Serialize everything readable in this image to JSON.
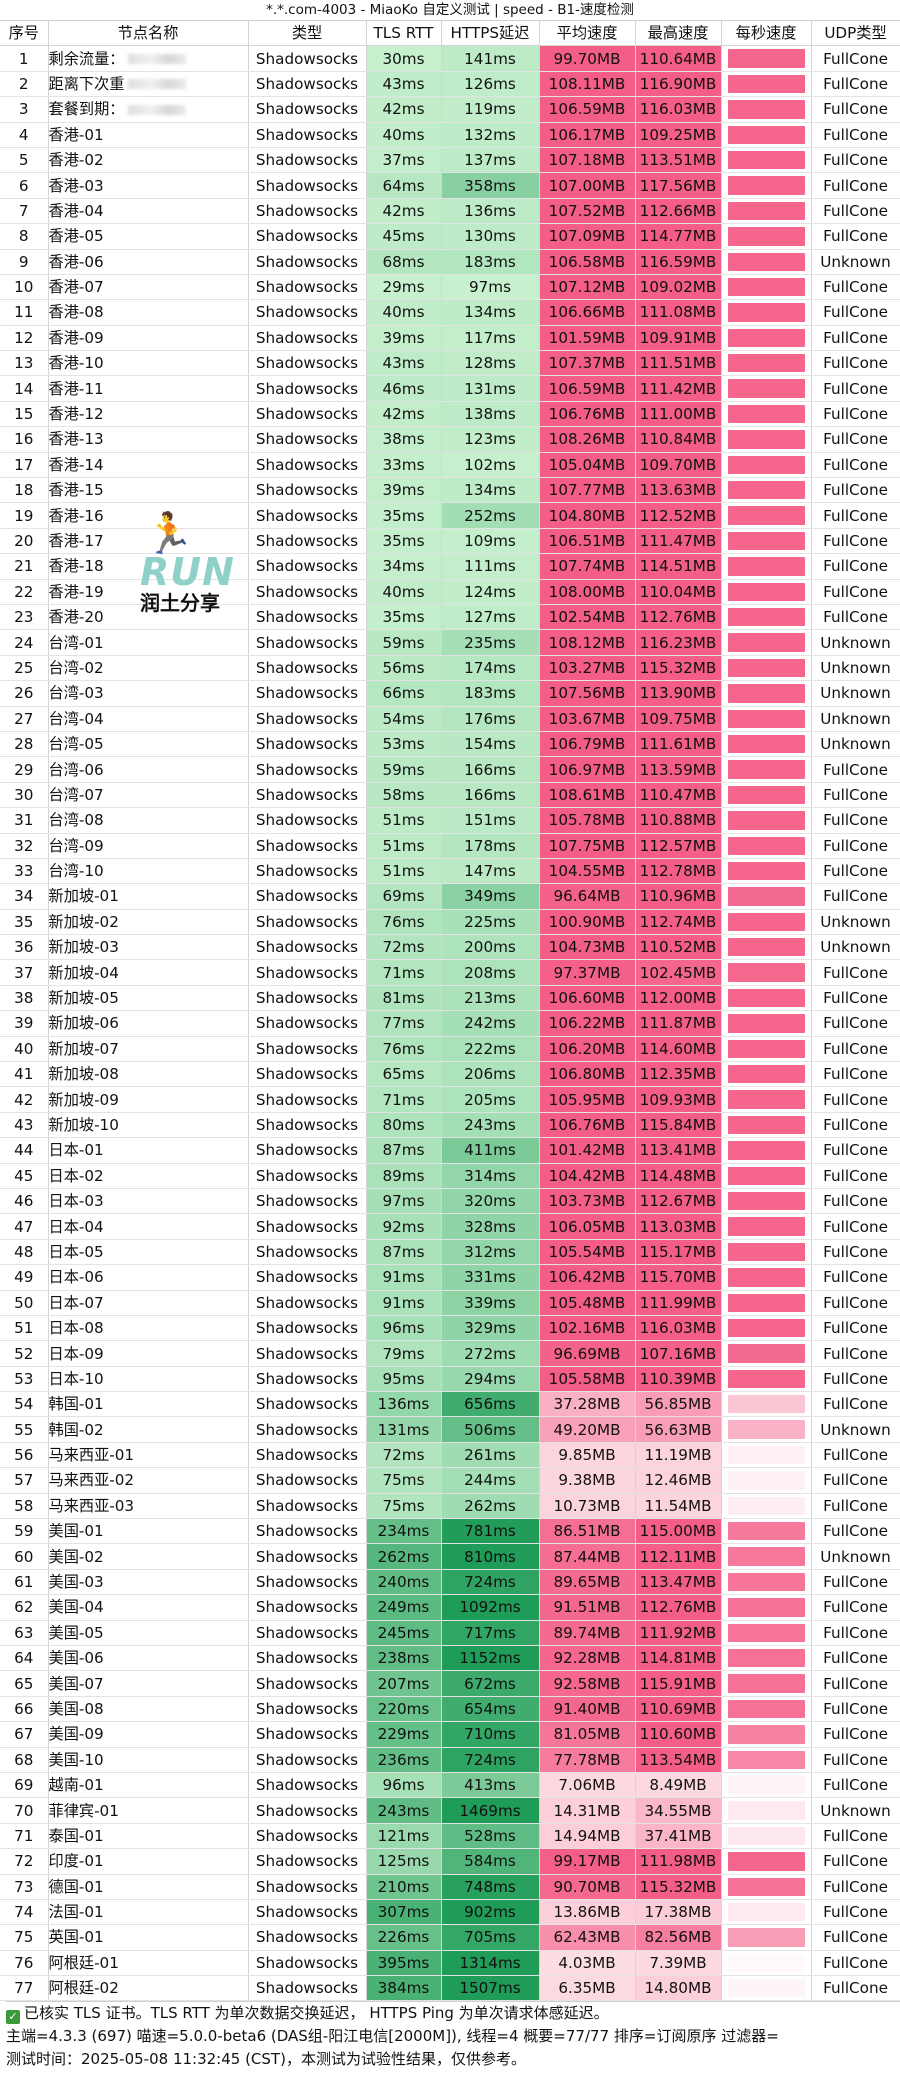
{
  "window": {
    "title": "*.*.com-4003 - MiaoKo 自定义测试 | speed - B1-速度检测"
  },
  "columns": [
    "序号",
    "节点名称",
    "类型",
    "TLS RTT",
    "HTTPS延迟",
    "平均速度",
    "最高速度",
    "每秒速度",
    "UDP类型"
  ],
  "rows": [
    {
      "id": "1",
      "name": "剩余流量：",
      "type": "Shadowsocks",
      "tls": "30ms",
      "https": "141ms",
      "avg": "99.70MB",
      "max": "110.64MB",
      "udp": "FullCone"
    },
    {
      "id": "2",
      "name": "距离下次重",
      "type": "Shadowsocks",
      "tls": "43ms",
      "https": "126ms",
      "avg": "108.11MB",
      "max": "116.90MB",
      "udp": "FullCone"
    },
    {
      "id": "3",
      "name": "套餐到期：",
      "type": "Shadowsocks",
      "tls": "42ms",
      "https": "119ms",
      "avg": "106.59MB",
      "max": "116.03MB",
      "udp": "FullCone"
    },
    {
      "id": "4",
      "name": "香港-01",
      "type": "Shadowsocks",
      "tls": "40ms",
      "https": "132ms",
      "avg": "106.17MB",
      "max": "109.25MB",
      "udp": "FullCone"
    },
    {
      "id": "5",
      "name": "香港-02",
      "type": "Shadowsocks",
      "tls": "37ms",
      "https": "137ms",
      "avg": "107.18MB",
      "max": "113.51MB",
      "udp": "FullCone"
    },
    {
      "id": "6",
      "name": "香港-03",
      "type": "Shadowsocks",
      "tls": "64ms",
      "https": "358ms",
      "avg": "107.00MB",
      "max": "117.56MB",
      "udp": "FullCone"
    },
    {
      "id": "7",
      "name": "香港-04",
      "type": "Shadowsocks",
      "tls": "42ms",
      "https": "136ms",
      "avg": "107.52MB",
      "max": "112.66MB",
      "udp": "FullCone"
    },
    {
      "id": "8",
      "name": "香港-05",
      "type": "Shadowsocks",
      "tls": "45ms",
      "https": "130ms",
      "avg": "107.09MB",
      "max": "114.77MB",
      "udp": "FullCone"
    },
    {
      "id": "9",
      "name": "香港-06",
      "type": "Shadowsocks",
      "tls": "68ms",
      "https": "183ms",
      "avg": "106.58MB",
      "max": "116.59MB",
      "udp": "Unknown"
    },
    {
      "id": "10",
      "name": "香港-07",
      "type": "Shadowsocks",
      "tls": "29ms",
      "https": "97ms",
      "avg": "107.12MB",
      "max": "109.02MB",
      "udp": "FullCone"
    },
    {
      "id": "11",
      "name": "香港-08",
      "type": "Shadowsocks",
      "tls": "40ms",
      "https": "134ms",
      "avg": "106.66MB",
      "max": "111.08MB",
      "udp": "FullCone"
    },
    {
      "id": "12",
      "name": "香港-09",
      "type": "Shadowsocks",
      "tls": "39ms",
      "https": "117ms",
      "avg": "101.59MB",
      "max": "109.91MB",
      "udp": "FullCone"
    },
    {
      "id": "13",
      "name": "香港-10",
      "type": "Shadowsocks",
      "tls": "43ms",
      "https": "128ms",
      "avg": "107.37MB",
      "max": "111.51MB",
      "udp": "FullCone"
    },
    {
      "id": "14",
      "name": "香港-11",
      "type": "Shadowsocks",
      "tls": "46ms",
      "https": "131ms",
      "avg": "106.59MB",
      "max": "111.42MB",
      "udp": "FullCone"
    },
    {
      "id": "15",
      "name": "香港-12",
      "type": "Shadowsocks",
      "tls": "42ms",
      "https": "138ms",
      "avg": "106.76MB",
      "max": "111.00MB",
      "udp": "FullCone"
    },
    {
      "id": "16",
      "name": "香港-13",
      "type": "Shadowsocks",
      "tls": "38ms",
      "https": "123ms",
      "avg": "108.26MB",
      "max": "110.84MB",
      "udp": "FullCone"
    },
    {
      "id": "17",
      "name": "香港-14",
      "type": "Shadowsocks",
      "tls": "33ms",
      "https": "102ms",
      "avg": "105.04MB",
      "max": "109.70MB",
      "udp": "FullCone"
    },
    {
      "id": "18",
      "name": "香港-15",
      "type": "Shadowsocks",
      "tls": "39ms",
      "https": "134ms",
      "avg": "107.77MB",
      "max": "113.63MB",
      "udp": "FullCone"
    },
    {
      "id": "19",
      "name": "香港-16",
      "type": "Shadowsocks",
      "tls": "35ms",
      "https": "252ms",
      "avg": "104.80MB",
      "max": "112.52MB",
      "udp": "FullCone"
    },
    {
      "id": "20",
      "name": "香港-17",
      "type": "Shadowsocks",
      "tls": "35ms",
      "https": "109ms",
      "avg": "106.51MB",
      "max": "111.47MB",
      "udp": "FullCone"
    },
    {
      "id": "21",
      "name": "香港-18",
      "type": "Shadowsocks",
      "tls": "34ms",
      "https": "111ms",
      "avg": "107.74MB",
      "max": "114.51MB",
      "udp": "FullCone"
    },
    {
      "id": "22",
      "name": "香港-19",
      "type": "Shadowsocks",
      "tls": "40ms",
      "https": "124ms",
      "avg": "108.00MB",
      "max": "110.04MB",
      "udp": "FullCone"
    },
    {
      "id": "23",
      "name": "香港-20",
      "type": "Shadowsocks",
      "tls": "35ms",
      "https": "127ms",
      "avg": "102.54MB",
      "max": "112.76MB",
      "udp": "FullCone"
    },
    {
      "id": "24",
      "name": "台湾-01",
      "type": "Shadowsocks",
      "tls": "59ms",
      "https": "235ms",
      "avg": "108.12MB",
      "max": "116.23MB",
      "udp": "Unknown"
    },
    {
      "id": "25",
      "name": "台湾-02",
      "type": "Shadowsocks",
      "tls": "56ms",
      "https": "174ms",
      "avg": "103.27MB",
      "max": "115.32MB",
      "udp": "Unknown"
    },
    {
      "id": "26",
      "name": "台湾-03",
      "type": "Shadowsocks",
      "tls": "66ms",
      "https": "183ms",
      "avg": "107.56MB",
      "max": "113.90MB",
      "udp": "Unknown"
    },
    {
      "id": "27",
      "name": "台湾-04",
      "type": "Shadowsocks",
      "tls": "54ms",
      "https": "176ms",
      "avg": "103.67MB",
      "max": "109.75MB",
      "udp": "Unknown"
    },
    {
      "id": "28",
      "name": "台湾-05",
      "type": "Shadowsocks",
      "tls": "53ms",
      "https": "154ms",
      "avg": "106.79MB",
      "max": "111.61MB",
      "udp": "Unknown"
    },
    {
      "id": "29",
      "name": "台湾-06",
      "type": "Shadowsocks",
      "tls": "59ms",
      "https": "166ms",
      "avg": "106.97MB",
      "max": "113.59MB",
      "udp": "FullCone"
    },
    {
      "id": "30",
      "name": "台湾-07",
      "type": "Shadowsocks",
      "tls": "58ms",
      "https": "166ms",
      "avg": "108.61MB",
      "max": "110.47MB",
      "udp": "FullCone"
    },
    {
      "id": "31",
      "name": "台湾-08",
      "type": "Shadowsocks",
      "tls": "51ms",
      "https": "151ms",
      "avg": "105.78MB",
      "max": "110.88MB",
      "udp": "FullCone"
    },
    {
      "id": "32",
      "name": "台湾-09",
      "type": "Shadowsocks",
      "tls": "51ms",
      "https": "178ms",
      "avg": "107.75MB",
      "max": "112.57MB",
      "udp": "FullCone"
    },
    {
      "id": "33",
      "name": "台湾-10",
      "type": "Shadowsocks",
      "tls": "51ms",
      "https": "147ms",
      "avg": "104.55MB",
      "max": "112.78MB",
      "udp": "FullCone"
    },
    {
      "id": "34",
      "name": "新加坡-01",
      "type": "Shadowsocks",
      "tls": "69ms",
      "https": "349ms",
      "avg": "96.64MB",
      "max": "110.96MB",
      "udp": "FullCone"
    },
    {
      "id": "35",
      "name": "新加坡-02",
      "type": "Shadowsocks",
      "tls": "76ms",
      "https": "225ms",
      "avg": "100.90MB",
      "max": "112.74MB",
      "udp": "Unknown"
    },
    {
      "id": "36",
      "name": "新加坡-03",
      "type": "Shadowsocks",
      "tls": "72ms",
      "https": "200ms",
      "avg": "104.73MB",
      "max": "110.52MB",
      "udp": "Unknown"
    },
    {
      "id": "37",
      "name": "新加坡-04",
      "type": "Shadowsocks",
      "tls": "71ms",
      "https": "208ms",
      "avg": "97.37MB",
      "max": "102.45MB",
      "udp": "FullCone"
    },
    {
      "id": "38",
      "name": "新加坡-05",
      "type": "Shadowsocks",
      "tls": "81ms",
      "https": "213ms",
      "avg": "106.60MB",
      "max": "112.00MB",
      "udp": "FullCone"
    },
    {
      "id": "39",
      "name": "新加坡-06",
      "type": "Shadowsocks",
      "tls": "77ms",
      "https": "242ms",
      "avg": "106.22MB",
      "max": "111.87MB",
      "udp": "FullCone"
    },
    {
      "id": "40",
      "name": "新加坡-07",
      "type": "Shadowsocks",
      "tls": "76ms",
      "https": "222ms",
      "avg": "106.20MB",
      "max": "114.60MB",
      "udp": "FullCone"
    },
    {
      "id": "41",
      "name": "新加坡-08",
      "type": "Shadowsocks",
      "tls": "65ms",
      "https": "206ms",
      "avg": "106.80MB",
      "max": "112.35MB",
      "udp": "FullCone"
    },
    {
      "id": "42",
      "name": "新加坡-09",
      "type": "Shadowsocks",
      "tls": "71ms",
      "https": "205ms",
      "avg": "105.95MB",
      "max": "109.93MB",
      "udp": "FullCone"
    },
    {
      "id": "43",
      "name": "新加坡-10",
      "type": "Shadowsocks",
      "tls": "80ms",
      "https": "243ms",
      "avg": "106.76MB",
      "max": "115.84MB",
      "udp": "FullCone"
    },
    {
      "id": "44",
      "name": "日本-01",
      "type": "Shadowsocks",
      "tls": "87ms",
      "https": "411ms",
      "avg": "101.42MB",
      "max": "113.41MB",
      "udp": "FullCone"
    },
    {
      "id": "45",
      "name": "日本-02",
      "type": "Shadowsocks",
      "tls": "89ms",
      "https": "314ms",
      "avg": "104.42MB",
      "max": "114.48MB",
      "udp": "FullCone"
    },
    {
      "id": "46",
      "name": "日本-03",
      "type": "Shadowsocks",
      "tls": "97ms",
      "https": "320ms",
      "avg": "103.73MB",
      "max": "112.67MB",
      "udp": "FullCone"
    },
    {
      "id": "47",
      "name": "日本-04",
      "type": "Shadowsocks",
      "tls": "92ms",
      "https": "328ms",
      "avg": "106.05MB",
      "max": "113.03MB",
      "udp": "FullCone"
    },
    {
      "id": "48",
      "name": "日本-05",
      "type": "Shadowsocks",
      "tls": "87ms",
      "https": "312ms",
      "avg": "105.54MB",
      "max": "115.17MB",
      "udp": "FullCone"
    },
    {
      "id": "49",
      "name": "日本-06",
      "type": "Shadowsocks",
      "tls": "91ms",
      "https": "331ms",
      "avg": "106.42MB",
      "max": "115.70MB",
      "udp": "FullCone"
    },
    {
      "id": "50",
      "name": "日本-07",
      "type": "Shadowsocks",
      "tls": "91ms",
      "https": "339ms",
      "avg": "105.48MB",
      "max": "111.99MB",
      "udp": "FullCone"
    },
    {
      "id": "51",
      "name": "日本-08",
      "type": "Shadowsocks",
      "tls": "96ms",
      "https": "329ms",
      "avg": "102.16MB",
      "max": "116.03MB",
      "udp": "FullCone"
    },
    {
      "id": "52",
      "name": "日本-09",
      "type": "Shadowsocks",
      "tls": "79ms",
      "https": "272ms",
      "avg": "96.69MB",
      "max": "107.16MB",
      "udp": "FullCone"
    },
    {
      "id": "53",
      "name": "日本-10",
      "type": "Shadowsocks",
      "tls": "95ms",
      "https": "294ms",
      "avg": "105.58MB",
      "max": "110.39MB",
      "udp": "FullCone"
    },
    {
      "id": "54",
      "name": "韩国-01",
      "type": "Shadowsocks",
      "tls": "136ms",
      "https": "656ms",
      "avg": "37.28MB",
      "max": "56.85MB",
      "udp": "FullCone"
    },
    {
      "id": "55",
      "name": "韩国-02",
      "type": "Shadowsocks",
      "tls": "131ms",
      "https": "506ms",
      "avg": "49.20MB",
      "max": "56.63MB",
      "udp": "Unknown"
    },
    {
      "id": "56",
      "name": "马来西亚-01",
      "type": "Shadowsocks",
      "tls": "72ms",
      "https": "261ms",
      "avg": "9.85MB",
      "max": "11.19MB",
      "udp": "FullCone"
    },
    {
      "id": "57",
      "name": "马来西亚-02",
      "type": "Shadowsocks",
      "tls": "75ms",
      "https": "244ms",
      "avg": "9.38MB",
      "max": "12.46MB",
      "udp": "FullCone"
    },
    {
      "id": "58",
      "name": "马来西亚-03",
      "type": "Shadowsocks",
      "tls": "75ms",
      "https": "262ms",
      "avg": "10.73MB",
      "max": "11.54MB",
      "udp": "FullCone"
    },
    {
      "id": "59",
      "name": "美国-01",
      "type": "Shadowsocks",
      "tls": "234ms",
      "https": "781ms",
      "avg": "86.51MB",
      "max": "115.00MB",
      "udp": "FullCone"
    },
    {
      "id": "60",
      "name": "美国-02",
      "type": "Shadowsocks",
      "tls": "262ms",
      "https": "810ms",
      "avg": "87.44MB",
      "max": "112.11MB",
      "udp": "Unknown"
    },
    {
      "id": "61",
      "name": "美国-03",
      "type": "Shadowsocks",
      "tls": "240ms",
      "https": "724ms",
      "avg": "89.65MB",
      "max": "113.47MB",
      "udp": "FullCone"
    },
    {
      "id": "62",
      "name": "美国-04",
      "type": "Shadowsocks",
      "tls": "249ms",
      "https": "1092ms",
      "avg": "91.51MB",
      "max": "112.76MB",
      "udp": "FullCone"
    },
    {
      "id": "63",
      "name": "美国-05",
      "type": "Shadowsocks",
      "tls": "245ms",
      "https": "717ms",
      "avg": "89.74MB",
      "max": "111.92MB",
      "udp": "FullCone"
    },
    {
      "id": "64",
      "name": "美国-06",
      "type": "Shadowsocks",
      "tls": "238ms",
      "https": "1152ms",
      "avg": "92.28MB",
      "max": "114.81MB",
      "udp": "FullCone"
    },
    {
      "id": "65",
      "name": "美国-07",
      "type": "Shadowsocks",
      "tls": "207ms",
      "https": "672ms",
      "avg": "92.58MB",
      "max": "115.91MB",
      "udp": "FullCone"
    },
    {
      "id": "66",
      "name": "美国-08",
      "type": "Shadowsocks",
      "tls": "220ms",
      "https": "654ms",
      "avg": "91.40MB",
      "max": "110.69MB",
      "udp": "FullCone"
    },
    {
      "id": "67",
      "name": "美国-09",
      "type": "Shadowsocks",
      "tls": "229ms",
      "https": "710ms",
      "avg": "81.05MB",
      "max": "110.60MB",
      "udp": "FullCone"
    },
    {
      "id": "68",
      "name": "美国-10",
      "type": "Shadowsocks",
      "tls": "236ms",
      "https": "724ms",
      "avg": "77.78MB",
      "max": "113.54MB",
      "udp": "FullCone"
    },
    {
      "id": "69",
      "name": "越南-01",
      "type": "Shadowsocks",
      "tls": "96ms",
      "https": "413ms",
      "avg": "7.06MB",
      "max": "8.49MB",
      "udp": "FullCone"
    },
    {
      "id": "70",
      "name": "菲律宾-01",
      "type": "Shadowsocks",
      "tls": "243ms",
      "https": "1469ms",
      "avg": "14.31MB",
      "max": "34.55MB",
      "udp": "Unknown"
    },
    {
      "id": "71",
      "name": "泰国-01",
      "type": "Shadowsocks",
      "tls": "121ms",
      "https": "528ms",
      "avg": "14.94MB",
      "max": "37.41MB",
      "udp": "FullCone"
    },
    {
      "id": "72",
      "name": "印度-01",
      "type": "Shadowsocks",
      "tls": "125ms",
      "https": "584ms",
      "avg": "99.17MB",
      "max": "111.98MB",
      "udp": "FullCone"
    },
    {
      "id": "73",
      "name": "德国-01",
      "type": "Shadowsocks",
      "tls": "210ms",
      "https": "748ms",
      "avg": "90.70MB",
      "max": "115.32MB",
      "udp": "FullCone"
    },
    {
      "id": "74",
      "name": "法国-01",
      "type": "Shadowsocks",
      "tls": "307ms",
      "https": "902ms",
      "avg": "13.86MB",
      "max": "17.38MB",
      "udp": "FullCone"
    },
    {
      "id": "75",
      "name": "英国-01",
      "type": "Shadowsocks",
      "tls": "226ms",
      "https": "705ms",
      "avg": "62.43MB",
      "max": "82.56MB",
      "udp": "FullCone"
    },
    {
      "id": "76",
      "name": "阿根廷-01",
      "type": "Shadowsocks",
      "tls": "395ms",
      "https": "1314ms",
      "avg": "4.03MB",
      "max": "7.39MB",
      "udp": "FullCone"
    },
    {
      "id": "77",
      "name": "阿根廷-02",
      "type": "Shadowsocks",
      "tls": "384ms",
      "https": "1507ms",
      "avg": "6.35MB",
      "max": "14.80MB",
      "udp": "FullCone"
    }
  ],
  "watermark": {
    "icon": "runner-icon",
    "brand": "RUN",
    "subtitle": "润土分享"
  },
  "footer": {
    "line1": "已核实 TLS 证书。TLS RTT 为单次数据交换延迟， HTTPS Ping 为单次请求体感延迟。",
    "line2": "主端=4.3.3 (697) 喵速=5.0.0-beta6 (DAS组-阳江电信[2000M]), 线程=4 概要=77/77 排序=订阅原序 过滤器=",
    "line3": "测试时间：2025-05-08 11:32:45 (CST)，本测试为试验性结果，仅供参考。"
  },
  "colors": {
    "green_light": "#c9f1cf",
    "green_dark": "#1f9c57",
    "pink_strong": "#f45d86",
    "pink_light": "#fde2e8"
  }
}
